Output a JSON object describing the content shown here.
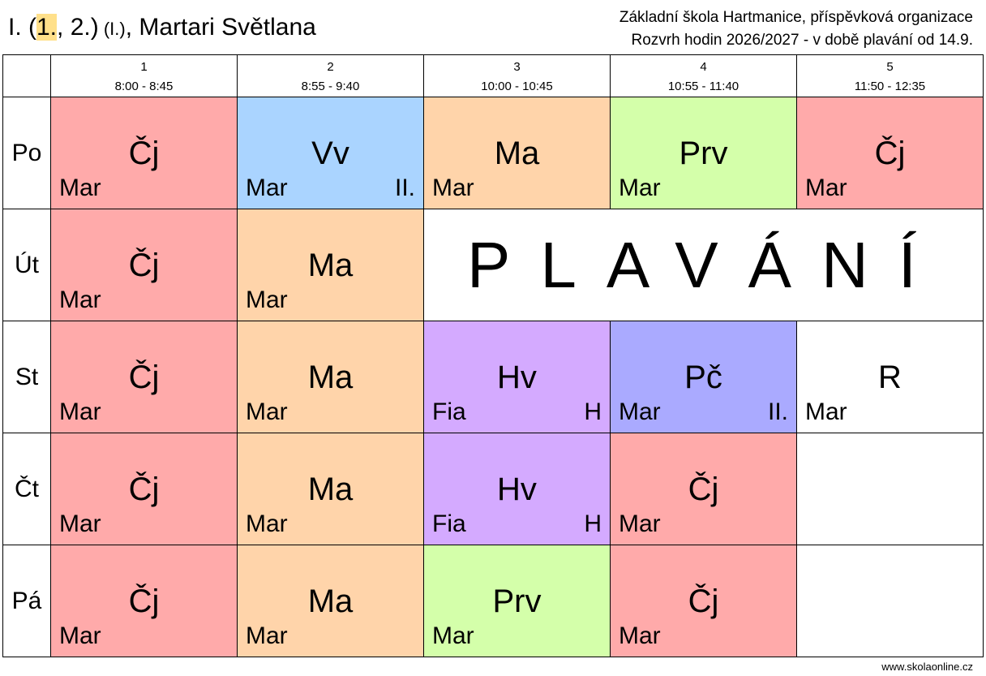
{
  "header": {
    "class_prefix": "I. (",
    "grade_highlight": "1.",
    "grade_rest": ", 2.)",
    "class_small": " (I.)",
    "teacher_name": ", Martari Světlana",
    "school_name": "Základní škola Hartmanice, příspěvková organizace",
    "schedule_title": "Rozvrh hodin 2026/2027 - v době plavání od 14.9."
  },
  "periods": [
    {
      "num": "1",
      "time": "8:00 - 8:45"
    },
    {
      "num": "2",
      "time": "8:55 - 9:40"
    },
    {
      "num": "3",
      "time": "10:00 - 10:45"
    },
    {
      "num": "4",
      "time": "10:55 - 11:40"
    },
    {
      "num": "5",
      "time": "11:50 - 12:35"
    }
  ],
  "days": [
    {
      "label": "Po",
      "cells": [
        {
          "subject": "Čj",
          "teacher": "Mar",
          "room": "",
          "color": "#ffaaaa"
        },
        {
          "subject": "Vv",
          "teacher": "Mar",
          "room": "II.",
          "color": "#aad4ff"
        },
        {
          "subject": "Ma",
          "teacher": "Mar",
          "room": "",
          "color": "#ffd4aa"
        },
        {
          "subject": "Prv",
          "teacher": "Mar",
          "room": "",
          "color": "#d4ffaa"
        },
        {
          "subject": "Čj",
          "teacher": "Mar",
          "room": "",
          "color": "#ffaaaa"
        }
      ]
    },
    {
      "label": "Út",
      "cells": [
        {
          "subject": "Čj",
          "teacher": "Mar",
          "room": "",
          "color": "#ffaaaa"
        },
        {
          "subject": "Ma",
          "teacher": "Mar",
          "room": "",
          "color": "#ffd4aa"
        }
      ],
      "swim_label": "PLAVÁNÍ"
    },
    {
      "label": "St",
      "cells": [
        {
          "subject": "Čj",
          "teacher": "Mar",
          "room": "",
          "color": "#ffaaaa"
        },
        {
          "subject": "Ma",
          "teacher": "Mar",
          "room": "",
          "color": "#ffd4aa"
        },
        {
          "subject": "Hv",
          "teacher": "Fia",
          "room": "H",
          "color": "#d4aaff"
        },
        {
          "subject": "Pč",
          "teacher": "Mar",
          "room": "II.",
          "color": "#aaaaff"
        },
        {
          "subject": "R",
          "teacher": "Mar",
          "room": "",
          "color": "#ffffff"
        }
      ]
    },
    {
      "label": "Čt",
      "cells": [
        {
          "subject": "Čj",
          "teacher": "Mar",
          "room": "",
          "color": "#ffaaaa"
        },
        {
          "subject": "Ma",
          "teacher": "Mar",
          "room": "",
          "color": "#ffd4aa"
        },
        {
          "subject": "Hv",
          "teacher": "Fia",
          "room": "H",
          "color": "#d4aaff"
        },
        {
          "subject": "Čj",
          "teacher": "Mar",
          "room": "",
          "color": "#ffaaaa"
        },
        {
          "subject": "",
          "teacher": "",
          "room": "",
          "color": "#ffffff"
        }
      ]
    },
    {
      "label": "Pá",
      "cells": [
        {
          "subject": "Čj",
          "teacher": "Mar",
          "room": "",
          "color": "#ffaaaa"
        },
        {
          "subject": "Ma",
          "teacher": "Mar",
          "room": "",
          "color": "#ffd4aa"
        },
        {
          "subject": "Prv",
          "teacher": "Mar",
          "room": "",
          "color": "#d4ffaa"
        },
        {
          "subject": "Čj",
          "teacher": "Mar",
          "room": "",
          "color": "#ffaaaa"
        },
        {
          "subject": "",
          "teacher": "",
          "room": "",
          "color": "#ffffff"
        }
      ]
    }
  ],
  "footer": {
    "site": "www.skolaonline.cz"
  }
}
